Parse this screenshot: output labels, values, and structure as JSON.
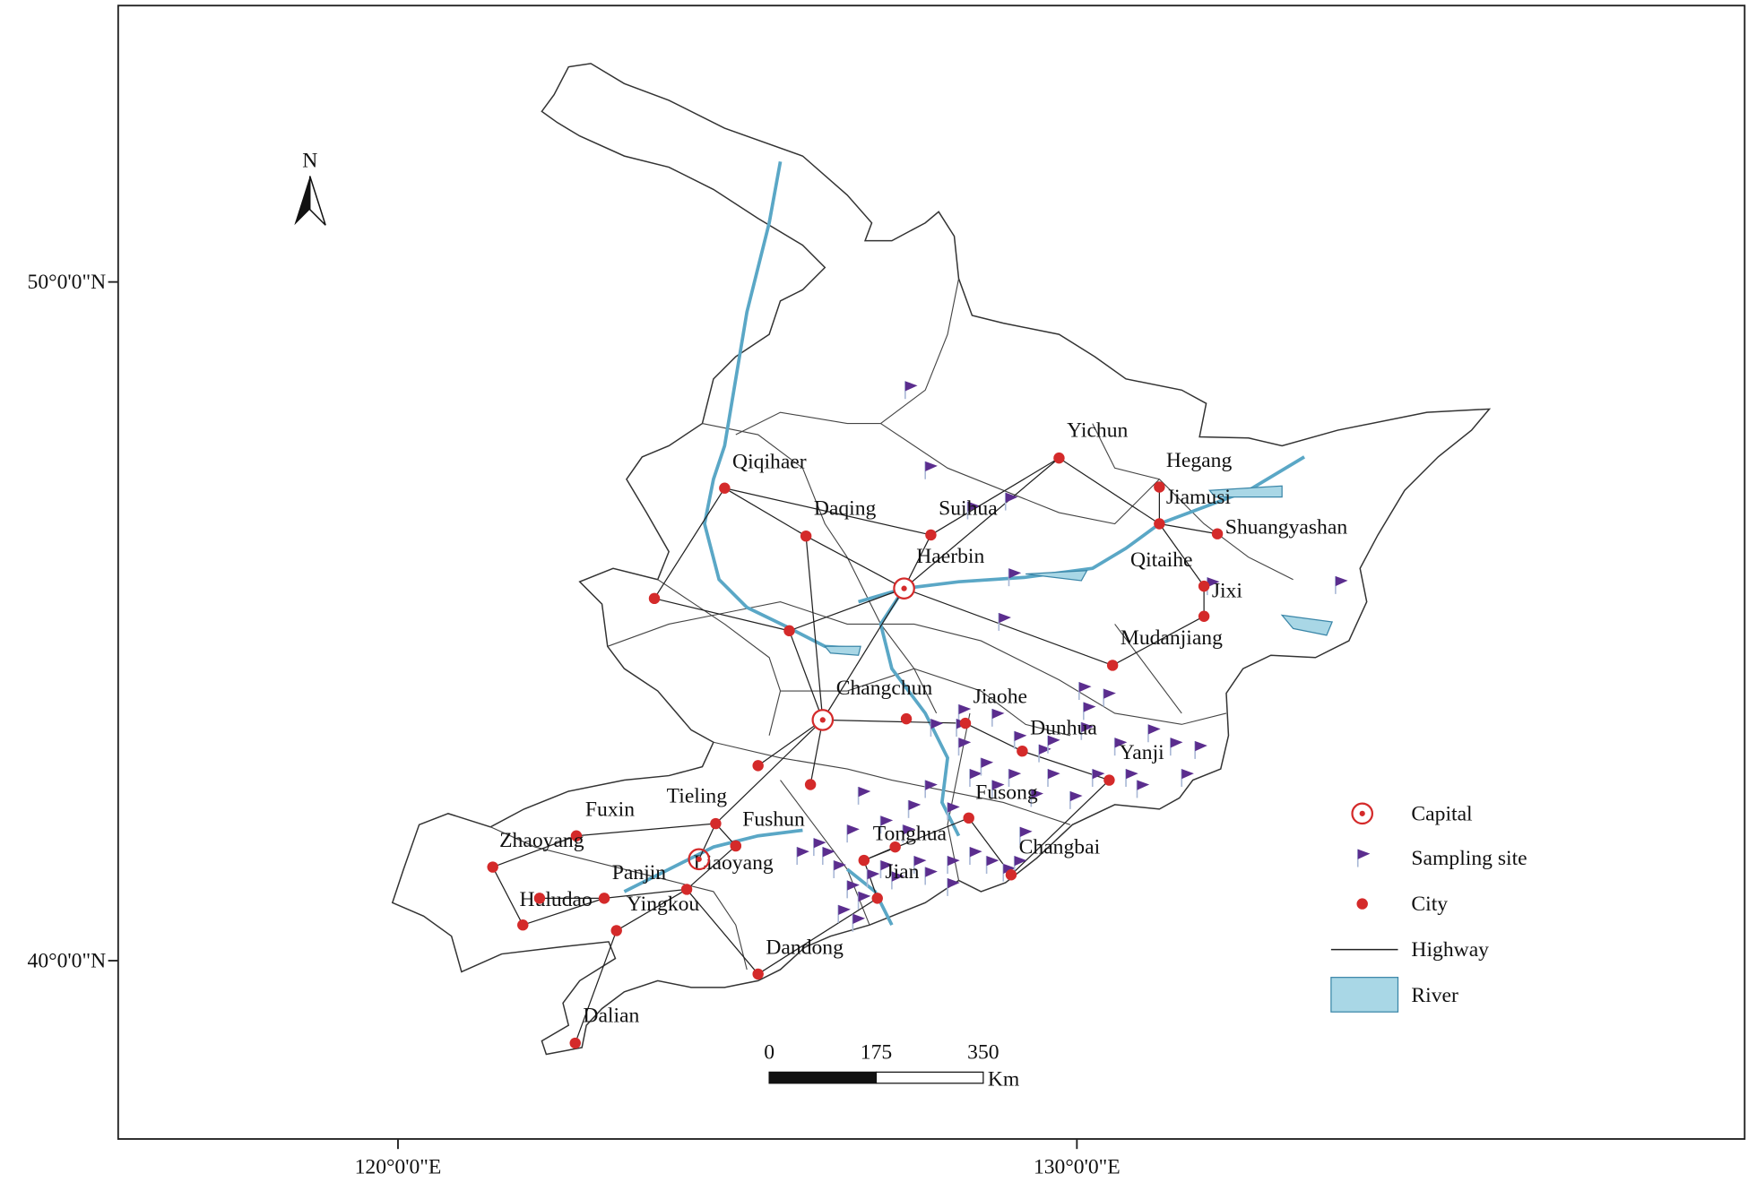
{
  "axes": {
    "lat_labels": [
      "50°0'0\"N",
      "40°0'0\"N"
    ],
    "lon_labels": [
      "120°0'0\"E",
      "130°0'0\"E"
    ]
  },
  "north": "N",
  "cities": [
    "Qiqihaer",
    "Daqing",
    "Suihua",
    "Yichun",
    "Hegang",
    "Jiamusi",
    "Shuangyashan",
    "Haerbin",
    "Qitaihe",
    "Jixi",
    "Mudanjiang",
    "Changchun",
    "Jiaohe",
    "Dunhua",
    "Yanji",
    "Fusong",
    "Tieling",
    "Fushun",
    "Fuxin",
    "Zhaoyang",
    "Panjin",
    "Liaoyang",
    "Huludao",
    "Yingkou",
    "Tonghua",
    "Jian",
    "Changbai",
    "Dandong",
    "Dalian"
  ],
  "legend": [
    "Capital",
    "Sampling site",
    "City",
    "Highway",
    "River"
  ],
  "scale": {
    "ticks": [
      "0",
      "175",
      "350"
    ],
    "unit": "Km"
  }
}
